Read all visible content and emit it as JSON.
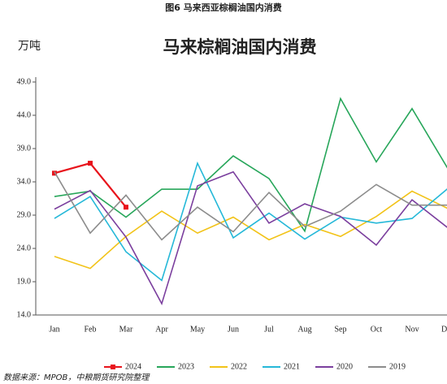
{
  "header": "图6 马来西亚棕榈油国内消费",
  "source": "数据来源：MPOB，中粮期货研究院整理",
  "chart_data": {
    "type": "line",
    "title": "马来棕榈油国内消费",
    "y_unit": "万吨",
    "categories": [
      "Jan",
      "Feb",
      "Mar",
      "Apr",
      "May",
      "Jun",
      "Jul",
      "Aug",
      "Sep",
      "Oct",
      "Nov",
      "Dec"
    ],
    "ylim": [
      14,
      49
    ],
    "yticks": [
      {
        "value": 14,
        "label": "14.0"
      },
      {
        "value": 19,
        "label": "19.0"
      },
      {
        "value": 24,
        "label": "24.0"
      },
      {
        "value": 29,
        "label": "29.0"
      },
      {
        "value": 34,
        "label": "34.0"
      },
      {
        "value": 39,
        "label": "39.0"
      },
      {
        "value": 44,
        "label": "44.0"
      },
      {
        "value": 49,
        "label": "49.0"
      }
    ],
    "grid": false,
    "legend": "bottom",
    "series": [
      {
        "name": "2024",
        "color": "#e8141c",
        "marker": "square",
        "values": [
          35.3,
          36.8,
          30.2,
          null,
          null,
          null,
          null,
          null,
          null,
          null,
          null,
          null
        ]
      },
      {
        "name": "2023",
        "color": "#27a65a",
        "values": [
          31.8,
          32.6,
          28.7,
          32.9,
          32.9,
          37.9,
          34.5,
          26.6,
          46.5,
          37.0,
          45.0,
          36.0
        ]
      },
      {
        "name": "2022",
        "color": "#f2c318",
        "values": [
          22.8,
          21.0,
          25.8,
          29.6,
          26.3,
          28.7,
          25.3,
          27.6,
          25.8,
          28.8,
          32.6,
          30.0
        ]
      },
      {
        "name": "2021",
        "color": "#25b8d8",
        "values": [
          28.5,
          31.8,
          23.5,
          19.2,
          36.8,
          25.6,
          29.3,
          25.4,
          28.7,
          27.8,
          28.5,
          33.0
        ]
      },
      {
        "name": "2020",
        "color": "#7b3f9e",
        "values": [
          29.9,
          32.7,
          25.7,
          15.7,
          33.4,
          35.5,
          27.8,
          30.7,
          28.8,
          24.5,
          31.3,
          27.1
        ]
      },
      {
        "name": "2019",
        "color": "#8c8c8c",
        "values": [
          35.5,
          26.3,
          32.0,
          25.3,
          30.2,
          26.5,
          32.4,
          27.3,
          29.6,
          33.6,
          30.5,
          30.5
        ]
      }
    ]
  }
}
